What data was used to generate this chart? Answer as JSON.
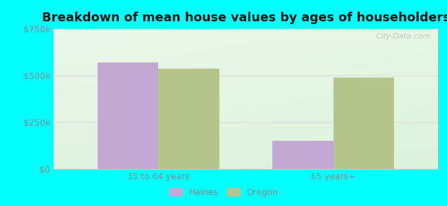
{
  "title": "Breakdown of mean house values by ages of householders",
  "categories": [
    "35 to 64 years",
    "65 years+"
  ],
  "haines_values": [
    570000,
    150000
  ],
  "oregon_values": [
    535000,
    490000
  ],
  "haines_color": "#c4a8d4",
  "oregon_color": "#b5c48a",
  "ylim": [
    0,
    750000
  ],
  "yticks": [
    0,
    250000,
    500000,
    750000
  ],
  "ytick_labels": [
    "$0",
    "$250k",
    "$500k",
    "$750k"
  ],
  "background_color": "#00ffff",
  "legend_labels": [
    "Haines",
    "Oregon"
  ],
  "bar_width": 0.35,
  "title_fontsize": 13,
  "tick_color": "#888888",
  "watermark": "City-Data.com",
  "grid_color": "#dddddd"
}
